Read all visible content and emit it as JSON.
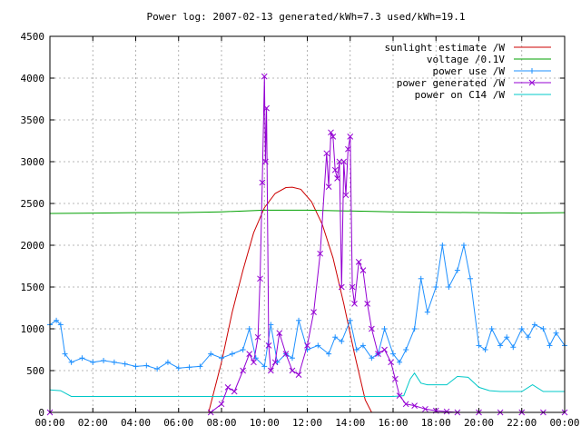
{
  "chart_data": {
    "type": "line",
    "title": "Power log: 2007-02-13 generated/kWh=7.3 used/kWh=19.1",
    "xlabel": "",
    "ylabel": "",
    "xlim": [
      0,
      24
    ],
    "ylim": [
      0,
      4500
    ],
    "grid": true,
    "legend_position": "top-right",
    "x_ticks": [
      "00:00",
      "02:00",
      "04:00",
      "06:00",
      "08:00",
      "10:00",
      "12:00",
      "14:00",
      "16:00",
      "18:00",
      "20:00",
      "22:00",
      "00:00"
    ],
    "y_ticks": [
      "0",
      "500",
      "1000",
      "1500",
      "2000",
      "2500",
      "3000",
      "3500",
      "4000",
      "4500"
    ],
    "series": [
      {
        "name": "sunlight estimate /W",
        "color": "#cc0000",
        "marker": "none",
        "x": [
          7.4,
          8.0,
          8.5,
          9.0,
          9.5,
          10.0,
          10.5,
          11.0,
          11.3,
          11.7,
          12.2,
          12.7,
          13.2,
          13.7,
          14.2,
          14.7,
          15.0
        ],
        "y": [
          0,
          600,
          1200,
          1700,
          2150,
          2450,
          2620,
          2690,
          2695,
          2670,
          2520,
          2250,
          1850,
          1300,
          700,
          150,
          0
        ]
      },
      {
        "name": "voltage /0.1V",
        "color": "#00a000",
        "marker": "none",
        "x": [
          0,
          2,
          4,
          6,
          8,
          10,
          12,
          14,
          16,
          18,
          20,
          22,
          24
        ],
        "y": [
          2380,
          2385,
          2390,
          2390,
          2400,
          2420,
          2420,
          2410,
          2400,
          2395,
          2390,
          2385,
          2390
        ]
      },
      {
        "name": "power use /W",
        "color": "#1e90ff",
        "marker": "plus",
        "x": [
          0.0,
          0.3,
          0.5,
          0.7,
          1.0,
          1.5,
          2.0,
          2.5,
          3.0,
          3.5,
          4.0,
          4.5,
          5.0,
          5.5,
          6.0,
          6.5,
          7.0,
          7.5,
          8.0,
          8.5,
          9.0,
          9.3,
          9.6,
          10.0,
          10.3,
          10.6,
          11.0,
          11.3,
          11.6,
          12.0,
          12.5,
          13.0,
          13.3,
          13.6,
          14.0,
          14.3,
          14.6,
          15.0,
          15.3,
          15.6,
          16.0,
          16.3,
          16.6,
          17.0,
          17.3,
          17.6,
          18.0,
          18.3,
          18.6,
          19.0,
          19.3,
          19.6,
          20.0,
          20.3,
          20.6,
          21.0,
          21.3,
          21.6,
          22.0,
          22.3,
          22.6,
          23.0,
          23.3,
          23.6,
          24.0
        ],
        "y": [
          1050,
          1100,
          1050,
          700,
          600,
          650,
          600,
          620,
          600,
          580,
          550,
          560,
          520,
          600,
          530,
          540,
          550,
          700,
          650,
          700,
          750,
          1000,
          650,
          550,
          1050,
          600,
          700,
          650,
          1100,
          750,
          800,
          700,
          900,
          850,
          1100,
          750,
          800,
          650,
          700,
          1000,
          700,
          600,
          750,
          1000,
          1600,
          1200,
          1500,
          2000,
          1500,
          1700,
          2000,
          1600,
          800,
          750,
          1000,
          800,
          900,
          780,
          1000,
          900,
          1050,
          1000,
          800,
          950,
          800
        ]
      },
      {
        "name": "power generated /W",
        "color": "#9400d3",
        "marker": "cross",
        "x": [
          0,
          7.5,
          8.0,
          8.3,
          8.6,
          9.0,
          9.3,
          9.5,
          9.7,
          9.8,
          9.9,
          10.0,
          10.05,
          10.1,
          10.2,
          10.3,
          10.5,
          10.7,
          11.0,
          11.3,
          11.6,
          12.0,
          12.3,
          12.6,
          12.9,
          13.0,
          13.1,
          13.2,
          13.3,
          13.4,
          13.5,
          13.6,
          13.7,
          13.8,
          13.9,
          14.0,
          14.1,
          14.2,
          14.4,
          14.6,
          14.8,
          15.0,
          15.3,
          15.6,
          15.9,
          16.1,
          16.3,
          16.6,
          17.0,
          17.5,
          18.0,
          18.5,
          19.0,
          20.0,
          21.0,
          22.0,
          23.0,
          24.0
        ],
        "y": [
          0,
          0,
          100,
          300,
          250,
          500,
          700,
          600,
          900,
          1600,
          2750,
          4020,
          3000,
          3640,
          800,
          500,
          600,
          950,
          700,
          500,
          450,
          800,
          1200,
          1900,
          3100,
          2700,
          3350,
          3300,
          2900,
          2800,
          3000,
          1500,
          3000,
          2600,
          3150,
          3300,
          1500,
          1300,
          1800,
          1700,
          1300,
          1000,
          700,
          750,
          600,
          400,
          200,
          100,
          80,
          40,
          20,
          10,
          0,
          0,
          0,
          0,
          0,
          0
        ]
      },
      {
        "name": "power on C14 /W",
        "color": "#00c8c8",
        "marker": "none",
        "x": [
          0,
          0.5,
          1.0,
          2.0,
          4.0,
          6.0,
          8.0,
          10.0,
          12.0,
          14.0,
          16.0,
          16.5,
          16.8,
          17.0,
          17.3,
          17.6,
          18.0,
          18.5,
          19.0,
          19.5,
          20.0,
          20.5,
          21.0,
          22.0,
          22.5,
          23.0,
          23.5,
          24.0
        ],
        "y": [
          270,
          260,
          190,
          190,
          190,
          190,
          190,
          190,
          190,
          190,
          190,
          200,
          400,
          470,
          350,
          330,
          330,
          330,
          430,
          420,
          300,
          260,
          250,
          250,
          330,
          250,
          250,
          250
        ]
      }
    ]
  }
}
